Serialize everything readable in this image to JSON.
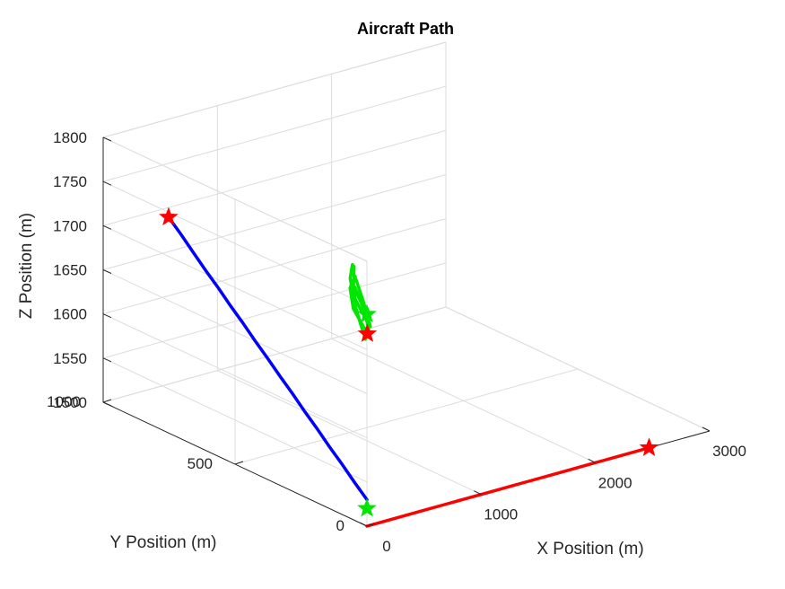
{
  "chart_data": {
    "type": "line3d",
    "title": "Aircraft Path",
    "xlabel": "X Position (m)",
    "ylabel": "Y Position (m)",
    "zlabel": "Z Position (m)",
    "xlim": [
      0,
      3000
    ],
    "ylim": [
      0,
      1000
    ],
    "zlim": [
      1500,
      1800
    ],
    "xticks": [
      "0",
      "1000",
      "2000",
      "3000"
    ],
    "yticks": [
      "0",
      "500",
      "1000"
    ],
    "zticks": [
      "1500",
      "1550",
      "1600",
      "1650",
      "1700",
      "1750",
      "1800"
    ],
    "grid": true,
    "series": [
      {
        "color": "#ff0000",
        "points": [
          [
            0,
            0,
            1500
          ],
          [
            130,
            0,
            1500
          ],
          [
            260,
            0,
            1500
          ],
          [
            390,
            0,
            1500
          ],
          [
            520,
            0,
            1500
          ],
          [
            650,
            0,
            1500
          ],
          [
            780,
            0,
            1500
          ],
          [
            910,
            0,
            1500
          ],
          [
            1040,
            0,
            1500
          ],
          [
            1170,
            0,
            1500
          ],
          [
            1300,
            0,
            1500
          ],
          [
            1430,
            0,
            1500
          ],
          [
            1560,
            0,
            1500
          ],
          [
            1690,
            0,
            1500
          ],
          [
            1820,
            0,
            1500
          ],
          [
            1950,
            0,
            1500
          ],
          [
            2080,
            0,
            1500
          ],
          [
            2210,
            0,
            1500
          ],
          [
            2340,
            0,
            1500
          ],
          [
            2470,
            0,
            1500
          ]
        ]
      },
      {
        "color": "#0000ff",
        "points": [
          [
            0,
            0,
            1530
          ],
          [
            30,
            60,
            1540
          ],
          [
            60,
            120,
            1551
          ],
          [
            90,
            180,
            1561
          ],
          [
            120,
            240,
            1572
          ],
          [
            150,
            300,
            1582
          ],
          [
            180,
            360,
            1593
          ],
          [
            210,
            420,
            1603
          ],
          [
            240,
            480,
            1614
          ],
          [
            270,
            540,
            1624
          ],
          [
            300,
            600,
            1635
          ],
          [
            330,
            660,
            1645
          ],
          [
            360,
            720,
            1656
          ],
          [
            390,
            780,
            1666
          ],
          [
            420,
            840,
            1677
          ],
          [
            450,
            900,
            1688
          ],
          [
            480,
            960,
            1698
          ]
        ]
      },
      {
        "color": "#00e600",
        "points": [
          [
            0,
            0,
            1740
          ],
          [
            90,
            90,
            1755
          ],
          [
            280,
            170,
            1760
          ],
          [
            450,
            250,
            1745
          ],
          [
            430,
            250,
            1730
          ],
          [
            250,
            160,
            1730
          ],
          [
            80,
            60,
            1735
          ],
          [
            30,
            0,
            1725
          ],
          [
            220,
            110,
            1732
          ],
          [
            380,
            210,
            1740
          ],
          [
            360,
            220,
            1726
          ],
          [
            180,
            130,
            1722
          ],
          [
            40,
            30,
            1720
          ],
          [
            70,
            20,
            1712
          ],
          [
            260,
            120,
            1716
          ],
          [
            400,
            220,
            1726
          ],
          [
            330,
            190,
            1714
          ],
          [
            150,
            90,
            1712
          ],
          [
            10,
            10,
            1710
          ],
          [
            -20,
            -10,
            1720
          ]
        ]
      }
    ],
    "markers": [
      {
        "color": "#00e600",
        "point": [
          0,
          0,
          1520
        ]
      },
      {
        "color": "#ff0000",
        "point": [
          2470,
          0,
          1500
        ]
      },
      {
        "color": "#ff0000",
        "point": [
          480,
          960,
          1698
        ]
      },
      {
        "color": "#00e600",
        "point": [
          0,
          0,
          1740
        ]
      },
      {
        "color": "#ff0000",
        "point": [
          -20,
          -10,
          1720
        ]
      }
    ]
  }
}
